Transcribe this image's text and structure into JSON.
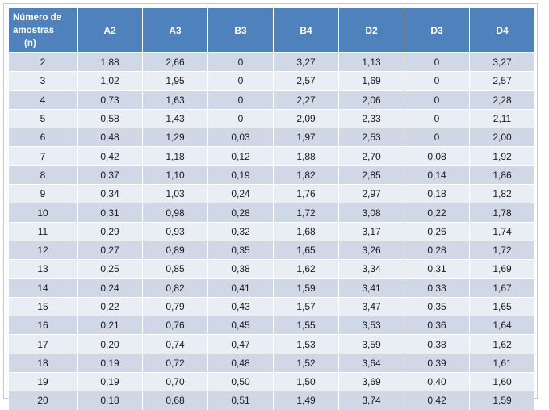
{
  "table": {
    "header_line1": "Número de",
    "header_line2": "amostras",
    "header_line3": "(n)",
    "columns": [
      "A2",
      "A3",
      "B3",
      "B4",
      "D2",
      "D3",
      "D4"
    ],
    "rows": [
      [
        "2",
        "1,88",
        "2,66",
        "0",
        "3,27",
        "1,13",
        "0",
        "3,27"
      ],
      [
        "3",
        "1,02",
        "1,95",
        "0",
        "2,57",
        "1,69",
        "0",
        "2,57"
      ],
      [
        "4",
        "0,73",
        "1,63",
        "0",
        "2,27",
        "2,06",
        "0",
        "2,28"
      ],
      [
        "5",
        "0,58",
        "1,43",
        "0",
        "2,09",
        "2,33",
        "0",
        "2,11"
      ],
      [
        "6",
        "0,48",
        "1,29",
        "0,03",
        "1,97",
        "2,53",
        "0",
        "2,00"
      ],
      [
        "7",
        "0,42",
        "1,18",
        "0,12",
        "1,88",
        "2,70",
        "0,08",
        "1,92"
      ],
      [
        "8",
        "0,37",
        "1,10",
        "0,19",
        "1,82",
        "2,85",
        "0,14",
        "1,86"
      ],
      [
        "9",
        "0,34",
        "1,03",
        "0,24",
        "1,76",
        "2,97",
        "0,18",
        "1,82"
      ],
      [
        "10",
        "0,31",
        "0,98",
        "0,28",
        "1,72",
        "3,08",
        "0,22",
        "1,78"
      ],
      [
        "11",
        "0,29",
        "0,93",
        "0,32",
        "1,68",
        "3,17",
        "0,26",
        "1,74"
      ],
      [
        "12",
        "0,27",
        "0,89",
        "0,35",
        "1,65",
        "3,26",
        "0,28",
        "1,72"
      ],
      [
        "13",
        "0,25",
        "0,85",
        "0,38",
        "1,62",
        "3,34",
        "0,31",
        "1,69"
      ],
      [
        "14",
        "0,24",
        "0,82",
        "0,41",
        "1,59",
        "3,41",
        "0,33",
        "1,67"
      ],
      [
        "15",
        "0,22",
        "0,79",
        "0,43",
        "1,57",
        "3,47",
        "0,35",
        "1,65"
      ],
      [
        "16",
        "0,21",
        "0,76",
        "0,45",
        "1,55",
        "3,53",
        "0,36",
        "1,64"
      ],
      [
        "17",
        "0,20",
        "0,74",
        "0,47",
        "1,53",
        "3,59",
        "0,38",
        "1,62"
      ],
      [
        "18",
        "0,19",
        "0,72",
        "0,48",
        "1,52",
        "3,64",
        "0,39",
        "1,61"
      ],
      [
        "19",
        "0,19",
        "0,70",
        "0,50",
        "1,50",
        "3,69",
        "0,40",
        "1,60"
      ],
      [
        "20",
        "0,18",
        "0,68",
        "0,51",
        "1,49",
        "3,74",
        "0,42",
        "1,59"
      ]
    ],
    "colors": {
      "header_bg": "#4f81bd",
      "header_text": "#ffffff",
      "row_band_dark": "#d0d8e8",
      "row_band_light": "#e9edf4"
    }
  }
}
